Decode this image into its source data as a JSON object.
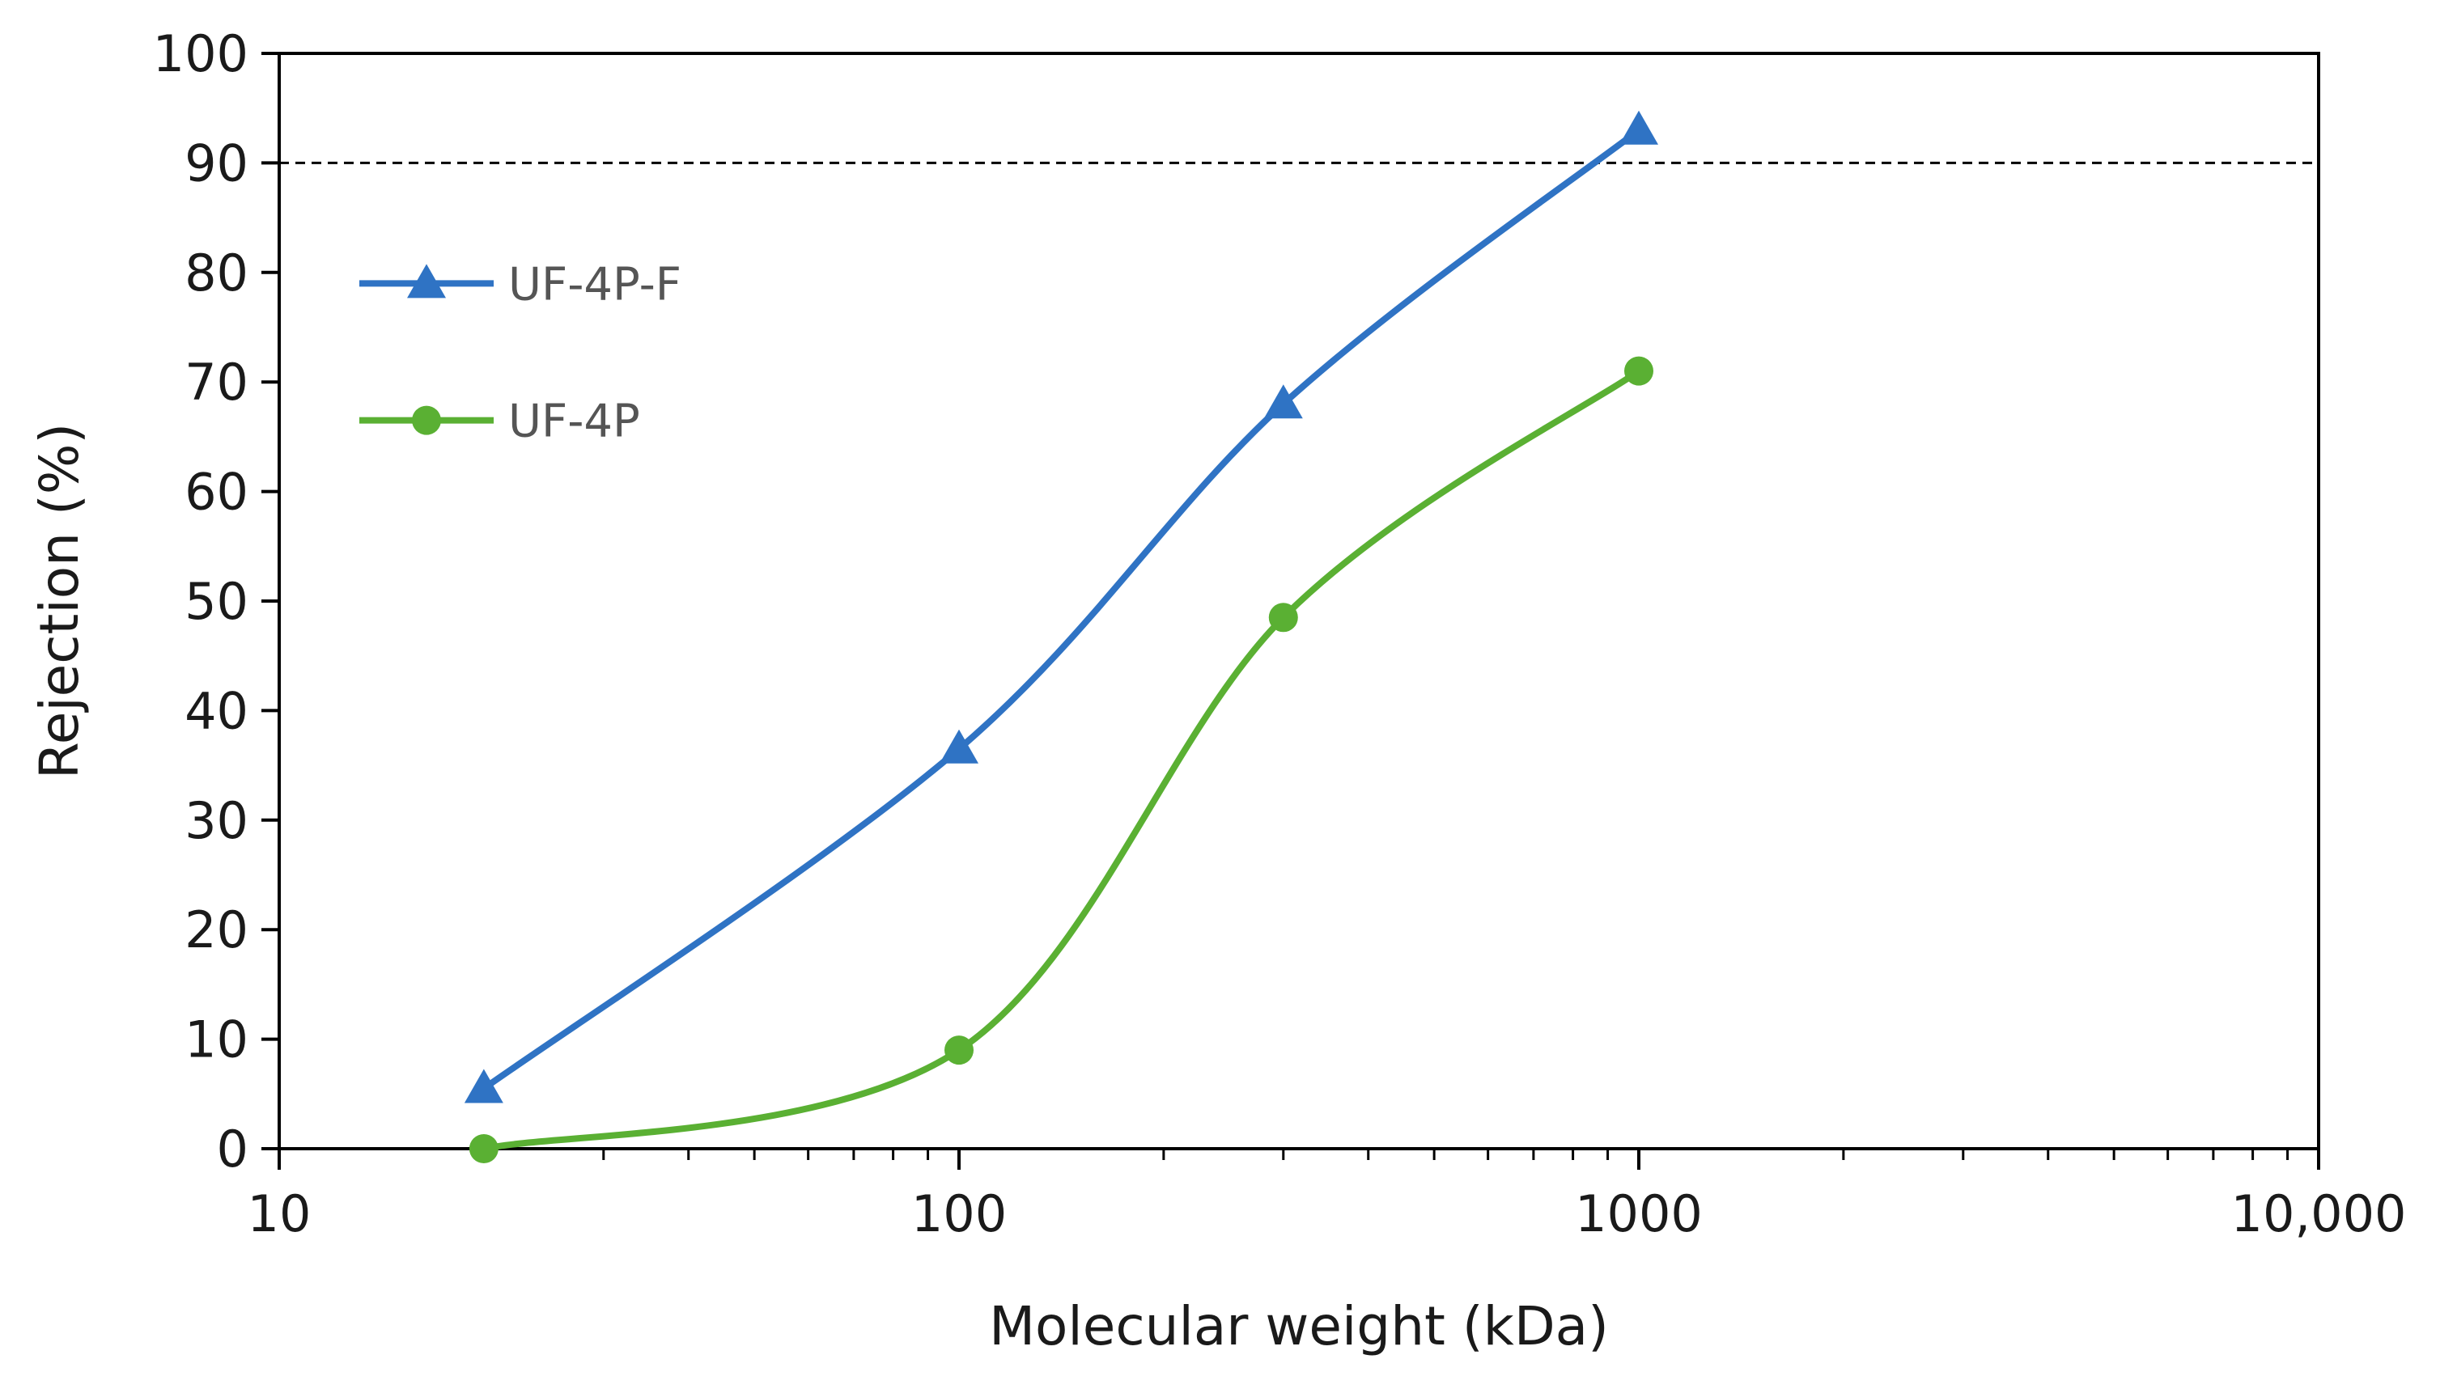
{
  "chart_data": {
    "type": "line",
    "xscale": "log",
    "xlabel": "Molecular weight (kDa)",
    "ylabel": "Rejection (%)",
    "xlim": [
      10,
      10000
    ],
    "ylim": [
      0,
      100
    ],
    "x_ticks": [
      {
        "value": 10,
        "label": "10"
      },
      {
        "value": 100,
        "label": "100"
      },
      {
        "value": 1000,
        "label": "1000"
      },
      {
        "value": 10000,
        "label": "10,000"
      }
    ],
    "y_ticks": [
      {
        "value": 0,
        "label": "0"
      },
      {
        "value": 10,
        "label": "10"
      },
      {
        "value": 20,
        "label": "20"
      },
      {
        "value": 30,
        "label": "30"
      },
      {
        "value": 40,
        "label": "40"
      },
      {
        "value": 50,
        "label": "50"
      },
      {
        "value": 60,
        "label": "60"
      },
      {
        "value": 70,
        "label": "70"
      },
      {
        "value": 80,
        "label": "80"
      },
      {
        "value": 90,
        "label": "90"
      },
      {
        "value": 100,
        "label": "100"
      }
    ],
    "reference_line": {
      "y": 90,
      "style": "dashed",
      "color": "#000000"
    },
    "series": [
      {
        "name": "UF-4P-F",
        "marker": "triangle",
        "color": "#2f73c4",
        "x": [
          20,
          100,
          300,
          1000
        ],
        "y": [
          5.5,
          36.5,
          68,
          93
        ]
      },
      {
        "name": "UF-4P",
        "marker": "circle",
        "color": "#5ab033",
        "x": [
          20,
          100,
          300,
          1000
        ],
        "y": [
          0,
          9,
          48.5,
          71
        ]
      }
    ],
    "legend_position": "upper-left"
  }
}
